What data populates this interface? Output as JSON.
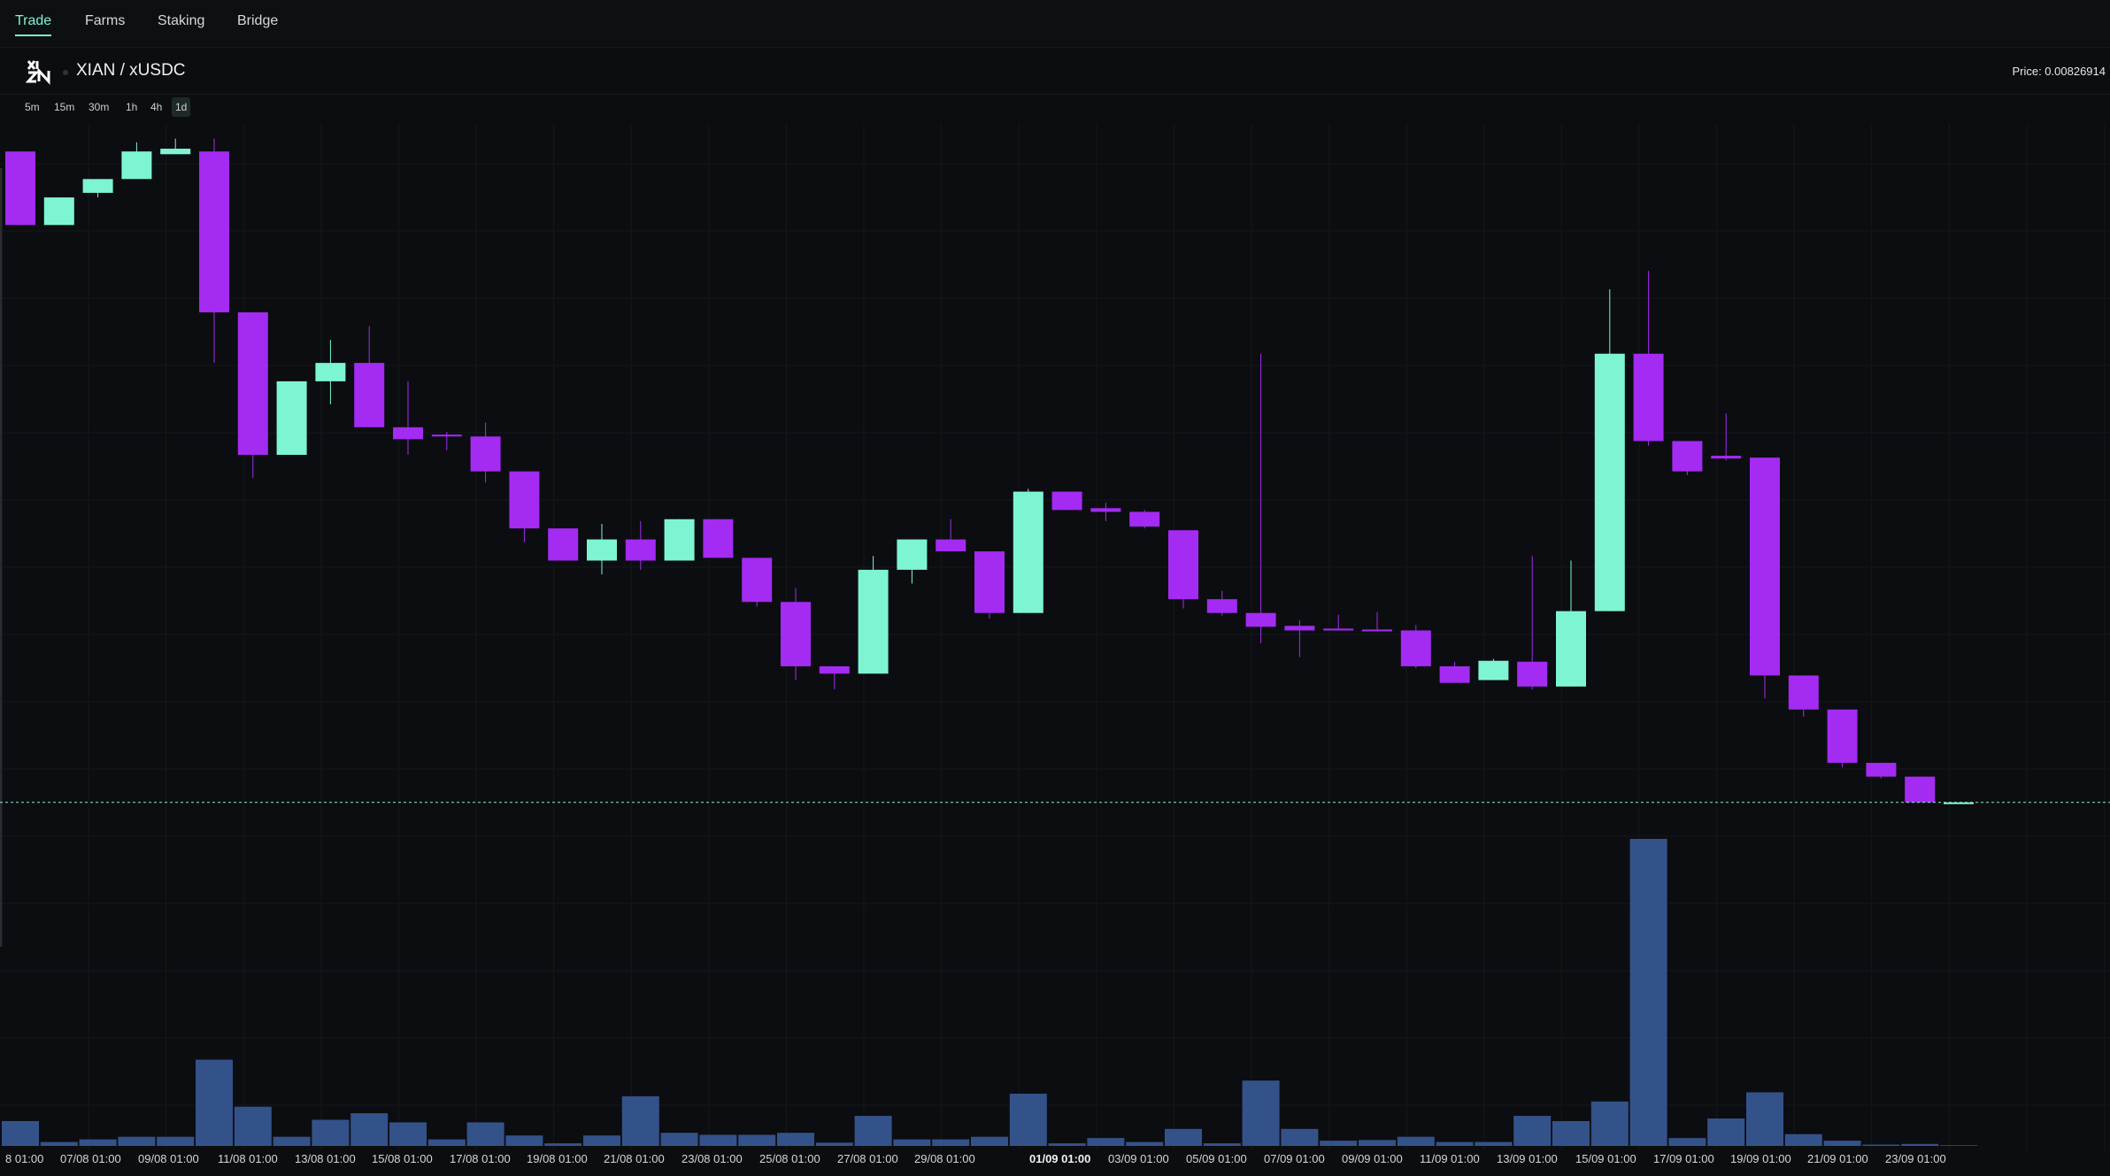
{
  "nav": {
    "items": [
      {
        "label": "Trade",
        "active": true
      },
      {
        "label": "Farms",
        "active": false
      },
      {
        "label": "Staking",
        "active": false
      },
      {
        "label": "Bridge",
        "active": false
      }
    ]
  },
  "pair": {
    "logo_icon": "xian-logo-icon",
    "name": "XIAN / xUSDC",
    "price_label": "Price: 0.00826914"
  },
  "timeframes": [
    {
      "label": "5m",
      "active": false
    },
    {
      "label": "15m",
      "active": false
    },
    {
      "label": "30m",
      "active": false
    },
    {
      "label": "1h",
      "active": false
    },
    {
      "label": "4h",
      "active": false
    },
    {
      "label": "1d",
      "active": true
    }
  ],
  "colors": {
    "up": "#7ef5d2",
    "down": "#a32bf2",
    "volume": "#34528a",
    "accent": "#7ef5d2"
  },
  "chart_data": {
    "type": "candlestick",
    "price_scale": "unlabeled",
    "x_tick_labels": [
      "8 01:00",
      "07/08 01:00",
      "09/08 01:00",
      "11/08 01:00",
      "13/08 01:00",
      "15/08 01:00",
      "17/08 01:00",
      "19/08 01:00",
      "21/08 01:00",
      "23/08 01:00",
      "25/08 01:00",
      "27/08 01:00",
      "29/08 01:00",
      "01/09 01:00",
      "03/09 01:00",
      "05/09 01:00",
      "07/09 01:00",
      "09/09 01:00",
      "11/09 01:00",
      "13/09 01:00",
      "15/09 01:00",
      "17/09 01:00",
      "19/09 01:00",
      "21/09 01:00",
      "23/09 01:00"
    ],
    "bold_tick": "01/09 01:00",
    "last_price_line": 0.0082,
    "candles": [
      {
        "o": 14.2,
        "h": 14.2,
        "l": 13.4,
        "c": 13.4,
        "v": 38
      },
      {
        "o": 13.4,
        "h": 13.7,
        "l": 13.4,
        "c": 13.7,
        "v": 6
      },
      {
        "o": 13.75,
        "h": 13.9,
        "l": 13.7,
        "c": 13.9,
        "v": 10
      },
      {
        "o": 13.9,
        "h": 14.3,
        "l": 13.9,
        "c": 14.2,
        "v": 14
      },
      {
        "o": 14.17,
        "h": 14.34,
        "l": 14.17,
        "c": 14.23,
        "v": 14
      },
      {
        "o": 14.2,
        "h": 14.34,
        "l": 11.9,
        "c": 12.45,
        "v": 132
      },
      {
        "o": 12.45,
        "h": 12.45,
        "l": 10.65,
        "c": 10.9,
        "v": 60
      },
      {
        "o": 10.9,
        "h": 11.7,
        "l": 10.9,
        "c": 11.7,
        "v": 14
      },
      {
        "o": 11.7,
        "h": 12.15,
        "l": 11.45,
        "c": 11.9,
        "v": 40
      },
      {
        "o": 11.9,
        "h": 12.3,
        "l": 11.2,
        "c": 11.2,
        "v": 50
      },
      {
        "o": 11.2,
        "h": 11.7,
        "l": 10.9,
        "c": 11.07,
        "v": 36
      },
      {
        "o": 11.12,
        "h": 11.15,
        "l": 10.95,
        "c": 11.1,
        "v": 10
      },
      {
        "o": 11.1,
        "h": 11.25,
        "l": 10.6,
        "c": 10.72,
        "v": 36
      },
      {
        "o": 10.72,
        "h": 10.72,
        "l": 9.95,
        "c": 10.1,
        "v": 16
      },
      {
        "o": 10.1,
        "h": 10.1,
        "l": 9.75,
        "c": 9.75,
        "v": 4
      },
      {
        "o": 9.75,
        "h": 10.15,
        "l": 9.6,
        "c": 9.98,
        "v": 16
      },
      {
        "o": 9.98,
        "h": 10.18,
        "l": 9.65,
        "c": 9.75,
        "v": 76
      },
      {
        "o": 9.75,
        "h": 10.2,
        "l": 9.75,
        "c": 10.2,
        "v": 20
      },
      {
        "o": 10.2,
        "h": 10.2,
        "l": 9.78,
        "c": 9.78,
        "v": 17
      },
      {
        "o": 9.78,
        "h": 9.78,
        "l": 9.25,
        "c": 9.3,
        "v": 17
      },
      {
        "o": 9.3,
        "h": 9.45,
        "l": 8.45,
        "c": 8.6,
        "v": 20
      },
      {
        "o": 8.6,
        "h": 8.6,
        "l": 8.35,
        "c": 8.52,
        "v": 5
      },
      {
        "o": 8.52,
        "h": 9.8,
        "l": 8.52,
        "c": 9.65,
        "v": 46
      },
      {
        "o": 9.65,
        "h": 9.98,
        "l": 9.5,
        "c": 9.98,
        "v": 10
      },
      {
        "o": 9.98,
        "h": 10.2,
        "l": 9.85,
        "c": 9.85,
        "v": 10
      },
      {
        "o": 9.85,
        "h": 9.85,
        "l": 9.12,
        "c": 9.18,
        "v": 14
      },
      {
        "o": 9.18,
        "h": 10.53,
        "l": 9.18,
        "c": 10.5,
        "v": 80
      },
      {
        "o": 10.5,
        "h": 10.5,
        "l": 10.3,
        "c": 10.3,
        "v": 4
      },
      {
        "o": 10.32,
        "h": 10.38,
        "l": 10.18,
        "c": 10.28,
        "v": 12
      },
      {
        "o": 10.28,
        "h": 10.3,
        "l": 10.1,
        "c": 10.12,
        "v": 6
      },
      {
        "o": 10.08,
        "h": 10.08,
        "l": 9.23,
        "c": 9.33,
        "v": 26
      },
      {
        "o": 9.33,
        "h": 9.42,
        "l": 9.15,
        "c": 9.18,
        "v": 4
      },
      {
        "o": 9.18,
        "h": 12.0,
        "l": 8.85,
        "c": 9.03,
        "v": 100
      },
      {
        "o": 9.04,
        "h": 9.1,
        "l": 8.7,
        "c": 8.99,
        "v": 26
      },
      {
        "o": 9.01,
        "h": 9.16,
        "l": 9.0,
        "c": 8.99,
        "v": 8
      },
      {
        "o": 9.0,
        "h": 9.19,
        "l": 8.98,
        "c": 8.98,
        "v": 9
      },
      {
        "o": 8.99,
        "h": 9.05,
        "l": 8.58,
        "c": 8.6,
        "v": 14
      },
      {
        "o": 8.6,
        "h": 8.65,
        "l": 8.42,
        "c": 8.42,
        "v": 6
      },
      {
        "o": 8.45,
        "h": 8.68,
        "l": 8.45,
        "c": 8.66,
        "v": 6
      },
      {
        "o": 8.65,
        "h": 9.8,
        "l": 8.35,
        "c": 8.38,
        "v": 46
      },
      {
        "o": 8.38,
        "h": 9.75,
        "l": 8.38,
        "c": 9.2,
        "v": 38
      },
      {
        "o": 9.2,
        "h": 12.7,
        "l": 9.2,
        "c": 12.0,
        "v": 68
      },
      {
        "o": 12.0,
        "h": 12.9,
        "l": 11.0,
        "c": 11.05,
        "v": 470
      },
      {
        "o": 11.05,
        "h": 11.05,
        "l": 10.68,
        "c": 10.72,
        "v": 12
      },
      {
        "o": 10.89,
        "h": 11.35,
        "l": 10.84,
        "c": 10.86,
        "v": 42
      },
      {
        "o": 10.87,
        "h": 10.87,
        "l": 8.25,
        "c": 8.5,
        "v": 82
      },
      {
        "o": 8.5,
        "h": 8.5,
        "l": 8.05,
        "c": 8.13,
        "v": 18
      },
      {
        "o": 8.13,
        "h": 8.13,
        "l": 7.5,
        "c": 7.55,
        "v": 8
      },
      {
        "o": 7.55,
        "h": 7.55,
        "l": 7.38,
        "c": 7.4,
        "v": 2
      },
      {
        "o": 7.4,
        "h": 7.4,
        "l": 7.12,
        "c": 7.12,
        "v": 3
      },
      {
        "o": 7.12,
        "h": 7.12,
        "l": 7.12,
        "c": 7.12,
        "v": 1
      }
    ]
  }
}
